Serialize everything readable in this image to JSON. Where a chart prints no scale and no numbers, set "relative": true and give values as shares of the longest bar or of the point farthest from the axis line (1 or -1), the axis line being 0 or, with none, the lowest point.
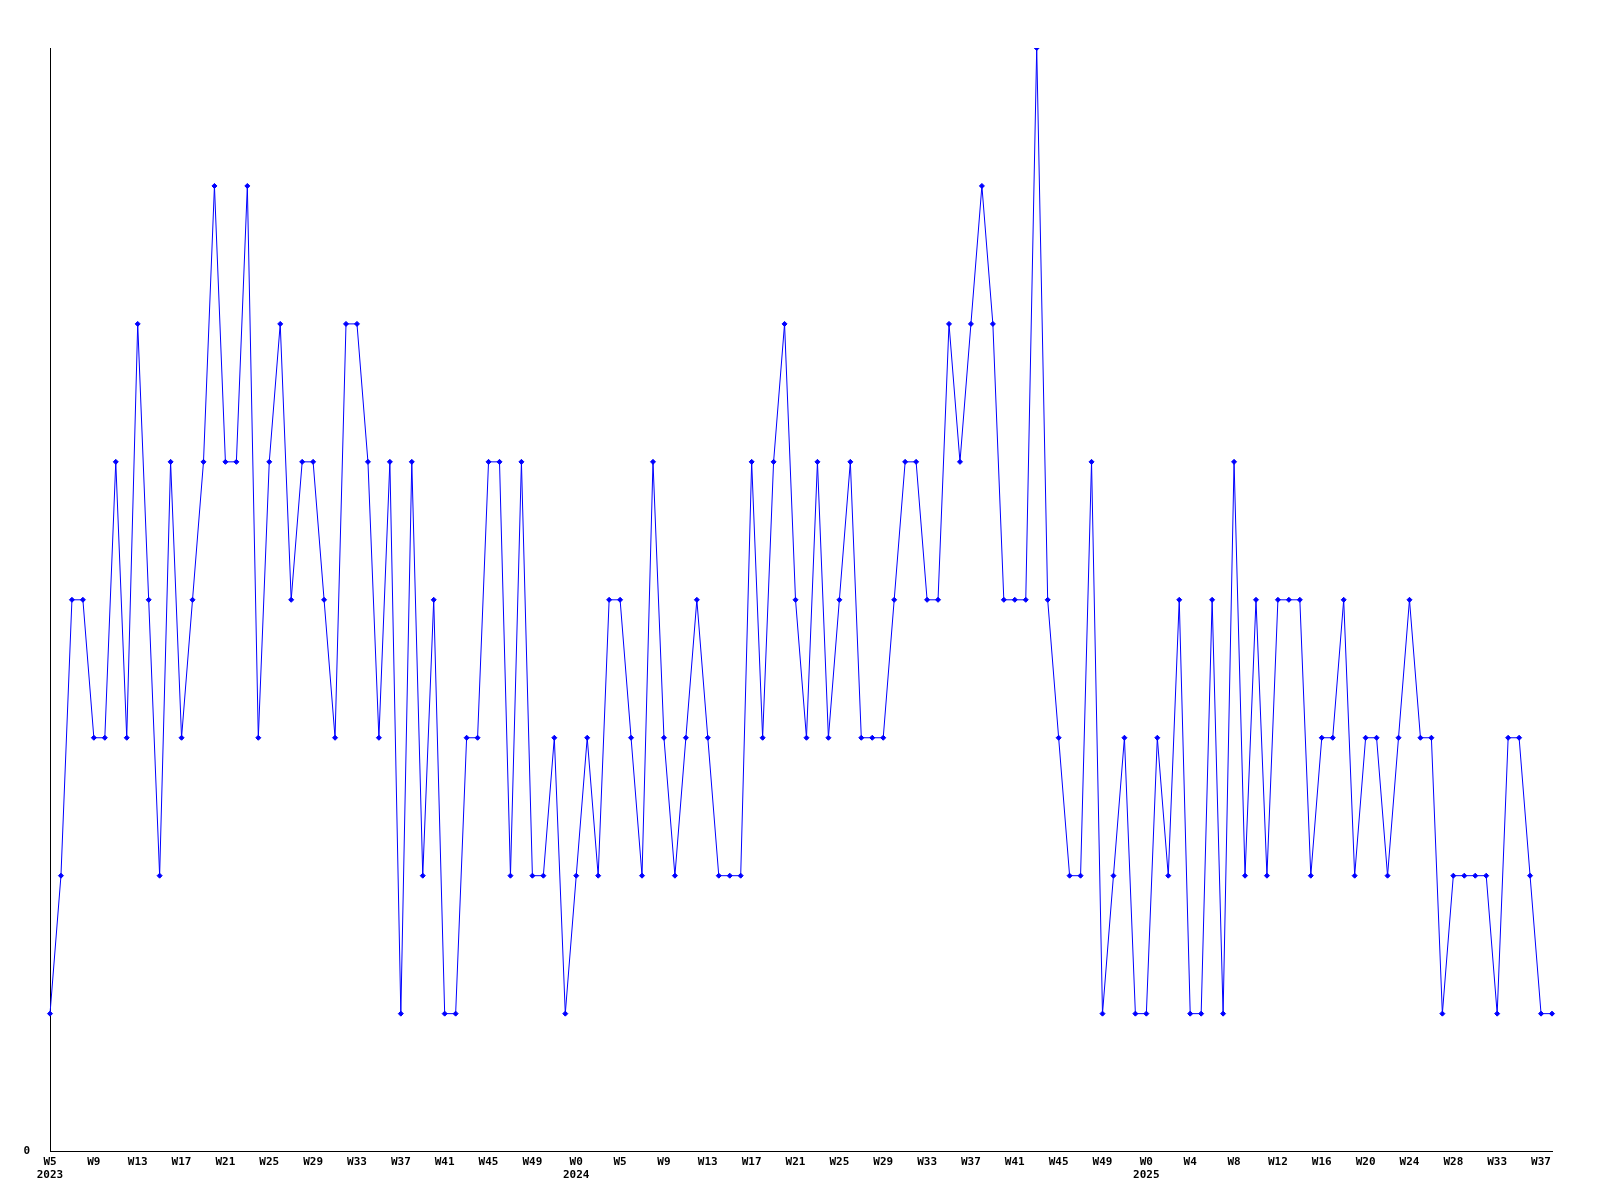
{
  "chart_data": {
    "type": "line",
    "relative": true,
    "annotations": [
      "0"
    ],
    "grid": false,
    "legend": false,
    "marker": "diamond",
    "line_style": "solid",
    "categories": [
      "W5\n2023",
      null,
      null,
      null,
      "W9",
      null,
      null,
      null,
      "W13",
      null,
      null,
      null,
      "W17",
      null,
      null,
      null,
      "W21",
      null,
      null,
      null,
      "W25",
      null,
      null,
      null,
      "W29",
      null,
      null,
      null,
      "W33",
      null,
      null,
      null,
      "W37",
      null,
      null,
      null,
      "W41",
      null,
      null,
      null,
      "W45",
      null,
      null,
      null,
      "W49",
      null,
      null,
      null,
      "W0\n2024",
      null,
      null,
      null,
      "W5",
      null,
      null,
      null,
      "W9",
      null,
      null,
      null,
      "W13",
      null,
      null,
      null,
      "W17",
      null,
      null,
      null,
      "W21",
      null,
      null,
      null,
      "W25",
      null,
      null,
      null,
      "W29",
      null,
      null,
      null,
      "W33",
      null,
      null,
      null,
      "W37",
      null,
      null,
      null,
      "W41",
      null,
      null,
      null,
      "W45",
      null,
      null,
      null,
      "W49",
      null,
      null,
      null,
      "W0\n2025",
      null,
      null,
      null,
      "W4",
      null,
      null,
      null,
      "W8",
      null,
      null,
      null,
      "W12",
      null,
      null,
      null,
      "W16",
      null,
      null,
      null,
      "W20",
      null,
      null,
      null,
      "W24",
      null,
      null,
      null,
      "W28",
      null,
      null,
      null,
      "W33",
      null,
      null,
      null,
      "W37",
      null
    ],
    "series": [
      {
        "color": "#0000ff",
        "values": [
          0.125,
          0.25,
          0.5,
          0.5,
          0.375,
          0.375,
          0.625,
          0.375,
          0.75,
          0.5,
          0.25,
          0.625,
          0.375,
          0.5,
          0.625,
          0.875,
          0.625,
          0.625,
          0.875,
          0.375,
          0.625,
          0.75,
          0.5,
          0.625,
          0.625,
          0.5,
          0.375,
          0.75,
          0.75,
          0.625,
          0.375,
          0.625,
          0.125,
          0.625,
          0.25,
          0.5,
          0.125,
          0.125,
          0.375,
          0.375,
          0.625,
          0.625,
          0.25,
          0.625,
          0.25,
          0.25,
          0.375,
          0.125,
          0.25,
          0.375,
          0.25,
          0.5,
          0.5,
          0.375,
          0.25,
          0.625,
          0.375,
          0.25,
          0.375,
          0.5,
          0.375,
          0.25,
          0.25,
          0.25,
          0.625,
          0.375,
          0.625,
          0.75,
          0.5,
          0.375,
          0.625,
          0.375,
          0.5,
          0.625,
          0.375,
          0.375,
          0.375,
          0.5,
          0.625,
          0.625,
          0.5,
          0.5,
          0.75,
          0.625,
          0.75,
          0.875,
          0.75,
          0.5,
          0.5,
          0.5,
          1,
          0.5,
          0.375,
          0.25,
          0.25,
          0.625,
          0.125,
          0.25,
          0.375,
          0.125,
          0.125,
          0.375,
          0.25,
          0.5,
          0.125,
          0.125,
          0.5,
          0.125,
          0.625,
          0.25,
          0.5,
          0.25,
          0.5,
          0.5,
          0.5,
          0.25,
          0.375,
          0.375,
          0.5,
          0.25,
          0.375,
          0.375,
          0.25,
          0.375,
          0.5,
          0.375,
          0.375,
          0.125,
          0.25,
          0.25,
          0.25,
          0.25,
          0.125,
          0.375,
          0.375,
          0.25,
          0.125,
          0.125
        ]
      }
    ]
  }
}
